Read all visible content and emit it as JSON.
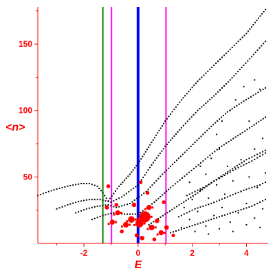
{
  "chart_data": {
    "type": "scatter",
    "title": "",
    "xlabel": "E",
    "ylabel": "<n>",
    "xlim": [
      -3.7,
      4.8
    ],
    "ylim": [
      0,
      178
    ],
    "x_ticks": [
      -2,
      0,
      2,
      4
    ],
    "x_tick_labels": [
      "-2",
      "0",
      "2",
      "4"
    ],
    "y_ticks": [
      50,
      100,
      150
    ],
    "y_tick_labels": [
      "50",
      "100",
      "150"
    ],
    "grid": false,
    "colors": {
      "axis": "#ff0000",
      "points": "#000000",
      "highlight": "#ff0000",
      "line_green": "#008000",
      "line_magenta": "#ff00ff",
      "line_blue": "#0000ff"
    },
    "vertical_lines": [
      {
        "x": -1.3,
        "color": "#008000"
      },
      {
        "x": -0.98,
        "color": "#ff00ff"
      },
      {
        "x": 0.0,
        "color": "#0000ff",
        "thick": true
      },
      {
        "x": 1.03,
        "color": "#ff00ff"
      }
    ],
    "series": [
      {
        "values": [
          [
            -3.7,
            36
          ],
          [
            -3.3,
            39
          ],
          [
            -2.9,
            41.5
          ],
          [
            -2.5,
            43.5
          ],
          [
            -2.1,
            45
          ],
          [
            -1.8,
            45
          ],
          [
            -1.5,
            43
          ],
          [
            -1.3,
            38
          ],
          [
            -1.1,
            32
          ],
          [
            -0.7,
            43
          ],
          [
            -0.3,
            52
          ],
          [
            0.0,
            60
          ],
          [
            0.5,
            76
          ],
          [
            1.0,
            92
          ],
          [
            1.6,
            108
          ],
          [
            2.2,
            122
          ],
          [
            2.8,
            134
          ],
          [
            3.4,
            146
          ],
          [
            4.0,
            158
          ],
          [
            4.7,
            176
          ]
        ]
      },
      {
        "values": [
          [
            -3.0,
            26
          ],
          [
            -2.6,
            29
          ],
          [
            -2.2,
            31.5
          ],
          [
            -1.8,
            33
          ],
          [
            -1.4,
            33
          ],
          [
            -1.0,
            31
          ],
          [
            -0.6,
            35
          ],
          [
            0.0,
            44
          ],
          [
            0.5,
            59
          ],
          [
            1.0,
            73
          ],
          [
            1.6,
            87
          ],
          [
            2.2,
            100
          ],
          [
            2.8,
            111
          ],
          [
            3.4,
            123
          ],
          [
            3.9,
            134
          ],
          [
            4.7,
            152
          ]
        ]
      },
      {
        "values": [
          [
            -2.3,
            23
          ],
          [
            -1.9,
            26
          ],
          [
            -1.5,
            28
          ],
          [
            -1.1,
            29
          ],
          [
            -0.8,
            27
          ],
          [
            -0.3,
            30
          ],
          [
            0.3,
            39
          ],
          [
            0.9,
            52
          ],
          [
            1.5,
            64
          ],
          [
            2.1,
            76
          ],
          [
            2.7,
            88
          ],
          [
            3.3,
            99
          ],
          [
            3.9,
            107
          ],
          [
            4.7,
            117
          ]
        ]
      },
      {
        "values": [
          [
            -1.7,
            18
          ],
          [
            -1.3,
            21
          ],
          [
            -0.9,
            23
          ],
          [
            -0.5,
            22
          ],
          [
            0.0,
            22
          ],
          [
            0.6,
            31
          ],
          [
            1.2,
            42
          ],
          [
            1.8,
            52
          ],
          [
            2.4,
            62
          ],
          [
            3.0,
            72
          ],
          [
            3.6,
            80
          ],
          [
            4.2,
            88
          ],
          [
            4.7,
            95
          ]
        ]
      },
      {
        "values": [
          [
            0.4,
            14
          ],
          [
            1.0,
            22
          ],
          [
            1.6,
            30
          ],
          [
            2.2,
            38
          ],
          [
            2.8,
            47
          ],
          [
            3.4,
            55
          ],
          [
            4.0,
            63
          ],
          [
            4.7,
            70
          ]
        ]
      },
      {
        "values": [
          [
            1.2,
            8
          ],
          [
            1.8,
            12
          ],
          [
            2.4,
            16
          ],
          [
            3.0,
            20
          ],
          [
            3.6,
            24
          ],
          [
            4.2,
            28
          ],
          [
            4.7,
            33
          ]
        ]
      },
      {
        "values": [
          [
            1.5,
            20
          ],
          [
            2.1,
            26
          ],
          [
            2.7,
            30
          ],
          [
            3.3,
            35
          ],
          [
            3.9,
            40
          ],
          [
            4.5,
            44
          ],
          [
            4.7,
            46
          ]
        ]
      },
      {
        "values": [
          [
            1.8,
            36
          ],
          [
            2.4,
            42
          ],
          [
            3.0,
            49
          ],
          [
            3.6,
            56
          ],
          [
            4.2,
            62
          ],
          [
            4.7,
            68
          ]
        ]
      }
    ],
    "scatter_cloud_points": [
      [
        1.6,
        12
      ],
      [
        1.9,
        18
      ],
      [
        2.2,
        24
      ],
      [
        2.5,
        13
      ],
      [
        2.8,
        21
      ],
      [
        3.1,
        27
      ],
      [
        3.4,
        16
      ],
      [
        3.7,
        23
      ],
      [
        4.0,
        30
      ],
      [
        4.3,
        19
      ],
      [
        4.6,
        26
      ],
      [
        1.7,
        27
      ],
      [
        2.0,
        33
      ],
      [
        2.3,
        40
      ],
      [
        2.6,
        34
      ],
      [
        2.9,
        44
      ],
      [
        3.2,
        37
      ],
      [
        3.5,
        47
      ],
      [
        3.8,
        39
      ],
      [
        4.1,
        50
      ],
      [
        4.4,
        42
      ],
      [
        4.7,
        53
      ],
      [
        2.1,
        9
      ],
      [
        2.6,
        7
      ],
      [
        3.0,
        11
      ],
      [
        3.5,
        9
      ],
      [
        4.0,
        14
      ],
      [
        4.5,
        12
      ],
      [
        1.9,
        46
      ],
      [
        2.5,
        52
      ],
      [
        3.3,
        58
      ],
      [
        3.8,
        63
      ],
      [
        4.3,
        71
      ],
      [
        3.6,
        108
      ],
      [
        3.9,
        118
      ],
      [
        4.3,
        123
      ],
      [
        4.5,
        116
      ],
      [
        3.1,
        92
      ],
      [
        3.4,
        100
      ],
      [
        2.9,
        82
      ],
      [
        2.3,
        58
      ],
      [
        2.7,
        64
      ],
      [
        3.0,
        71
      ],
      [
        4.6,
        79
      ],
      [
        4.1,
        92
      ]
    ],
    "highlight_points": [
      {
        "x": 0.25,
        "y": 20,
        "size": 3
      },
      {
        "x": 0.05,
        "y": 15,
        "size": 2
      },
      {
        "x": -0.25,
        "y": 18,
        "size": 1.5
      },
      {
        "x": -0.45,
        "y": 14,
        "size": 1.2
      },
      {
        "x": 0.5,
        "y": 12,
        "size": 1.2
      },
      {
        "x": 0.85,
        "y": 8,
        "size": 1
      },
      {
        "x": -0.75,
        "y": 23,
        "size": 1
      },
      {
        "x": -0.95,
        "y": 16,
        "size": 1
      },
      {
        "x": 0.4,
        "y": 27,
        "size": 1
      },
      {
        "x": -0.15,
        "y": 29,
        "size": 0.8
      },
      {
        "x": 0.7,
        "y": 17,
        "size": 0.8
      },
      {
        "x": 1.05,
        "y": 12,
        "size": 0.8
      },
      {
        "x": -1.15,
        "y": 27,
        "size": 0.7
      },
      {
        "x": -1.1,
        "y": 43,
        "size": 0.6
      },
      {
        "x": 0.1,
        "y": 46,
        "size": 0.5
      },
      {
        "x": 0.35,
        "y": 38,
        "size": 0.6
      },
      {
        "x": 0.15,
        "y": 4,
        "size": 0.8
      },
      {
        "x": -0.05,
        "y": 6,
        "size": 0.7
      },
      {
        "x": -0.6,
        "y": 9,
        "size": 0.6
      },
      {
        "x": 0.6,
        "y": 3,
        "size": 0.6
      },
      {
        "x": -0.8,
        "y": 29,
        "size": 0.6
      },
      {
        "x": 0.95,
        "y": 31,
        "size": 0.6
      },
      {
        "x": 1.3,
        "y": 6,
        "size": 0.5
      }
    ]
  }
}
